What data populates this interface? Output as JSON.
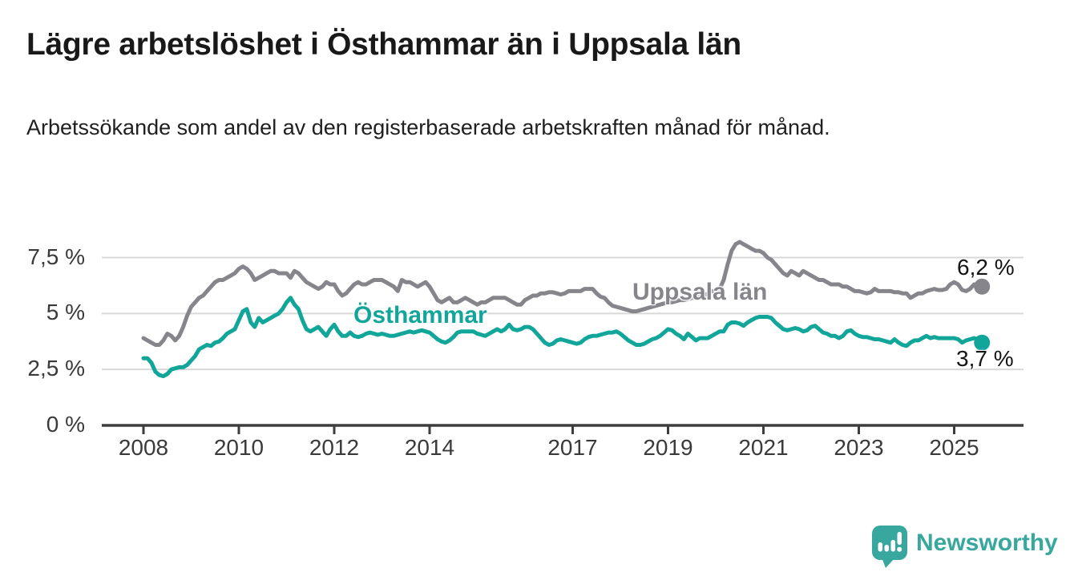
{
  "title": "Lägre arbetslöshet i Östhammar än i Uppsala län",
  "subtitle": "Arbetssökande som andel av den registerbaserade arbetskraften månad för månad.",
  "branding": {
    "name": "Newsworthy",
    "icon": "bar-chart-speech-bubble-icon",
    "color": "#38a79e"
  },
  "colors": {
    "grid": "#d8d8d8",
    "axis": "#3d3d3d",
    "tick_text": "#3a3a3a",
    "title_text": "#191919"
  },
  "chart_data": {
    "type": "line",
    "title": "Lägre arbetslöshet i Östhammar än i Uppsala län",
    "subtitle": "Arbetssökande som andel av den registerbaserade arbetskraften månad för månad.",
    "unit": "%",
    "frequency": "monthly",
    "x_start": "2008-01",
    "x_end": "2025-08",
    "x_tick_labels": [
      "2008",
      "2010",
      "2012",
      "2014",
      "2017",
      "2019",
      "2021",
      "2023",
      "2025"
    ],
    "y_tick_labels": [
      "7,5 %",
      "5 %",
      "2,5 %",
      "0 %"
    ],
    "ylim": [
      0,
      8.6
    ],
    "grid": "horizontal",
    "legend_position": "inline-labels",
    "series": [
      {
        "name": "Östhammar",
        "color": "#12a69a",
        "end_value": 3.7,
        "end_label": "3,7 %",
        "values": [
          3.0,
          3.0,
          2.8,
          2.4,
          2.25,
          2.2,
          2.3,
          2.5,
          2.55,
          2.6,
          2.6,
          2.7,
          2.9,
          3.1,
          3.4,
          3.5,
          3.6,
          3.55,
          3.7,
          3.75,
          3.9,
          4.1,
          4.2,
          4.3,
          4.7,
          5.1,
          5.2,
          4.6,
          4.4,
          4.8,
          4.6,
          4.7,
          4.8,
          4.9,
          5.0,
          5.2,
          5.5,
          5.7,
          5.4,
          5.2,
          4.7,
          4.3,
          4.2,
          4.3,
          4.4,
          4.2,
          4.0,
          4.3,
          4.5,
          4.2,
          4.0,
          4.0,
          4.15,
          4.0,
          3.95,
          4.0,
          4.1,
          4.15,
          4.1,
          4.05,
          4.1,
          4.05,
          4.0,
          4.0,
          4.05,
          4.1,
          4.15,
          4.2,
          4.15,
          4.2,
          4.25,
          4.2,
          4.15,
          4.0,
          3.85,
          3.75,
          3.7,
          3.8,
          3.95,
          4.15,
          4.2,
          4.2,
          4.2,
          4.2,
          4.1,
          4.05,
          4.0,
          4.1,
          4.2,
          4.3,
          4.2,
          4.3,
          4.5,
          4.3,
          4.25,
          4.3,
          4.4,
          4.4,
          4.3,
          4.1,
          3.9,
          3.7,
          3.6,
          3.65,
          3.8,
          3.85,
          3.8,
          3.75,
          3.7,
          3.65,
          3.7,
          3.85,
          3.95,
          4.0,
          4.0,
          4.05,
          4.1,
          4.15,
          4.15,
          4.2,
          4.1,
          3.95,
          3.8,
          3.7,
          3.6,
          3.6,
          3.65,
          3.75,
          3.85,
          3.9,
          4.0,
          4.15,
          4.3,
          4.25,
          4.1,
          4.0,
          3.85,
          4.1,
          3.95,
          3.8,
          3.9,
          3.9,
          3.9,
          4.0,
          4.1,
          4.2,
          4.2,
          4.5,
          4.6,
          4.6,
          4.55,
          4.45,
          4.6,
          4.7,
          4.8,
          4.85,
          4.85,
          4.85,
          4.8,
          4.6,
          4.45,
          4.3,
          4.25,
          4.3,
          4.35,
          4.3,
          4.2,
          4.25,
          4.4,
          4.45,
          4.3,
          4.15,
          4.1,
          4.0,
          4.0,
          3.9,
          4.0,
          4.2,
          4.25,
          4.1,
          4.0,
          3.95,
          3.95,
          3.9,
          3.85,
          3.85,
          3.8,
          3.75,
          3.7,
          3.85,
          3.7,
          3.6,
          3.55,
          3.7,
          3.8,
          3.8,
          3.9,
          4.0,
          3.9,
          3.95,
          3.9,
          3.9,
          3.9,
          3.9,
          3.9,
          3.85,
          3.7,
          3.8,
          3.85,
          3.9,
          3.85,
          3.7
        ]
      },
      {
        "name": "Uppsala län",
        "color": "#85858b",
        "end_value": 6.2,
        "end_label": "6,2 %",
        "values": [
          3.9,
          3.8,
          3.7,
          3.6,
          3.6,
          3.8,
          4.1,
          4.0,
          3.8,
          4.0,
          4.4,
          4.9,
          5.3,
          5.5,
          5.7,
          5.8,
          6.0,
          6.2,
          6.4,
          6.5,
          6.5,
          6.6,
          6.7,
          6.8,
          7.0,
          7.1,
          7.0,
          6.8,
          6.5,
          6.6,
          6.7,
          6.8,
          6.9,
          6.9,
          6.8,
          6.8,
          6.8,
          6.6,
          6.9,
          6.8,
          6.6,
          6.4,
          6.3,
          6.2,
          6.1,
          6.2,
          6.4,
          6.3,
          6.3,
          6.0,
          5.8,
          5.9,
          6.1,
          6.3,
          6.4,
          6.3,
          6.3,
          6.4,
          6.5,
          6.5,
          6.5,
          6.4,
          6.3,
          6.2,
          6.0,
          6.5,
          6.4,
          6.4,
          6.3,
          6.2,
          6.3,
          6.4,
          6.2,
          5.9,
          5.6,
          5.5,
          5.6,
          5.7,
          5.5,
          5.5,
          5.6,
          5.7,
          5.6,
          5.5,
          5.4,
          5.5,
          5.5,
          5.6,
          5.7,
          5.7,
          5.7,
          5.7,
          5.6,
          5.5,
          5.4,
          5.4,
          5.6,
          5.7,
          5.8,
          5.8,
          5.9,
          5.9,
          5.95,
          5.95,
          5.9,
          5.85,
          5.9,
          6.0,
          6.0,
          6.0,
          6.0,
          6.1,
          6.1,
          6.1,
          5.9,
          5.75,
          5.7,
          5.5,
          5.35,
          5.3,
          5.25,
          5.2,
          5.15,
          5.1,
          5.1,
          5.15,
          5.2,
          5.25,
          5.3,
          5.35,
          5.4,
          5.45,
          5.5,
          5.5,
          5.55,
          5.6,
          5.6,
          5.65,
          5.7,
          5.7,
          5.75,
          5.8,
          5.9,
          6.0,
          6.0,
          6.1,
          6.5,
          7.2,
          7.8,
          8.1,
          8.2,
          8.1,
          8.0,
          7.9,
          7.8,
          7.8,
          7.7,
          7.5,
          7.4,
          7.2,
          7.0,
          6.8,
          6.7,
          6.9,
          6.8,
          6.7,
          6.9,
          6.8,
          6.7,
          6.6,
          6.5,
          6.5,
          6.4,
          6.3,
          6.3,
          6.3,
          6.2,
          6.2,
          6.1,
          6.0,
          6.0,
          5.95,
          5.9,
          5.95,
          6.1,
          6.0,
          6.0,
          6.0,
          6.0,
          5.95,
          5.95,
          5.9,
          5.9,
          5.7,
          5.8,
          5.9,
          5.9,
          6.0,
          6.05,
          6.1,
          6.05,
          6.05,
          6.1,
          6.3,
          6.4,
          6.3,
          6.05,
          6.0,
          6.1,
          6.3,
          6.3,
          6.2
        ]
      }
    ]
  }
}
